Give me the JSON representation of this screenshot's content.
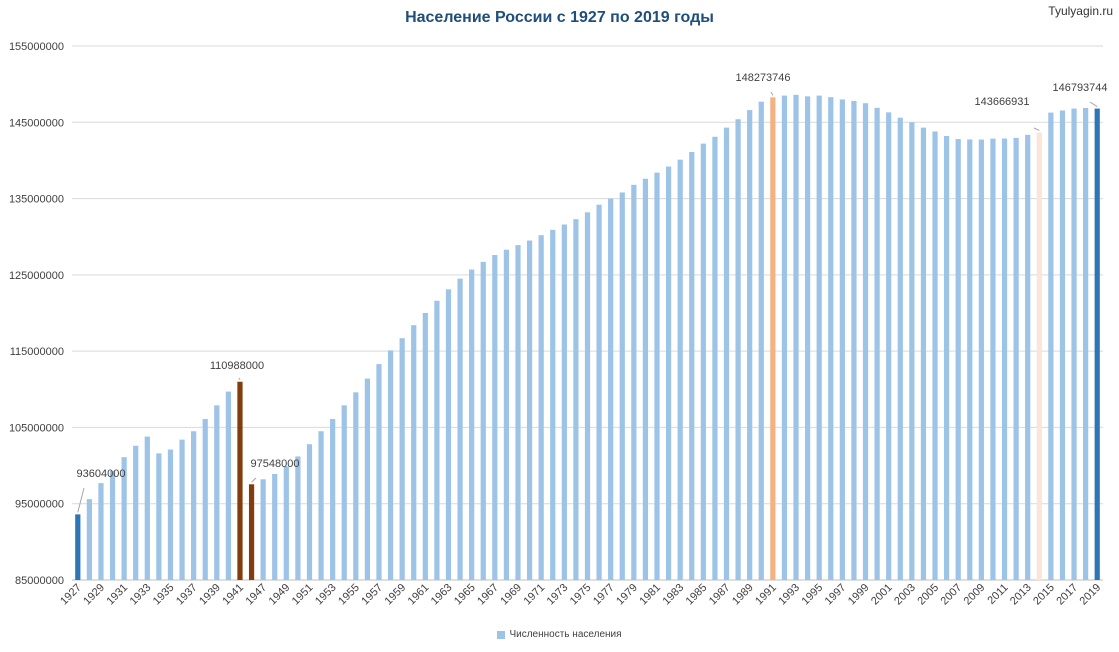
{
  "watermark": "Tyulyagin.ru",
  "chart_data": {
    "type": "bar",
    "title": "Население России с 1927 по 2019 годы",
    "xlabel": "",
    "ylabel": "",
    "ylim": [
      85000000,
      155000000
    ],
    "y_ticks": [
      85000000,
      95000000,
      105000000,
      115000000,
      125000000,
      135000000,
      145000000,
      155000000
    ],
    "grid": true,
    "legend_position": "bottom",
    "colors": {
      "default": "#9dc3e6",
      "endpoint": "#2e75b6",
      "war": "#843c0c",
      "peak": "#f4b183",
      "low2014": "#fbe5d6"
    },
    "series": [
      {
        "name": "Численность населения",
        "points": [
          {
            "year": "1927",
            "value": 93604000,
            "color": "endpoint",
            "label": "93604000"
          },
          {
            "year": "1928",
            "value": 95600000
          },
          {
            "year": "1929",
            "value": 97700000
          },
          {
            "year": "1930",
            "value": 99300000
          },
          {
            "year": "1931",
            "value": 101100000
          },
          {
            "year": "1932",
            "value": 102600000
          },
          {
            "year": "1933",
            "value": 103800000
          },
          {
            "year": "1934",
            "value": 101600000
          },
          {
            "year": "1935",
            "value": 102100000
          },
          {
            "year": "1936",
            "value": 103400000
          },
          {
            "year": "1937",
            "value": 104500000
          },
          {
            "year": "1938",
            "value": 106100000
          },
          {
            "year": "1939",
            "value": 107900000
          },
          {
            "year": "1940",
            "value": 109700000
          },
          {
            "year": "1941",
            "value": 110988000,
            "color": "war",
            "label": "110988000"
          },
          {
            "year": "1946",
            "value": 97548000,
            "color": "war",
            "label": "97548000"
          },
          {
            "year": "1947",
            "value": 98200000
          },
          {
            "year": "1948",
            "value": 98900000
          },
          {
            "year": "1949",
            "value": 99900000
          },
          {
            "year": "1950",
            "value": 101200000
          },
          {
            "year": "1951",
            "value": 102800000
          },
          {
            "year": "1952",
            "value": 104500000
          },
          {
            "year": "1953",
            "value": 106100000
          },
          {
            "year": "1954",
            "value": 107900000
          },
          {
            "year": "1955",
            "value": 109600000
          },
          {
            "year": "1956",
            "value": 111400000
          },
          {
            "year": "1957",
            "value": 113300000
          },
          {
            "year": "1958",
            "value": 115100000
          },
          {
            "year": "1959",
            "value": 116700000
          },
          {
            "year": "1960",
            "value": 118400000
          },
          {
            "year": "1961",
            "value": 120000000
          },
          {
            "year": "1962",
            "value": 121600000
          },
          {
            "year": "1963",
            "value": 123100000
          },
          {
            "year": "1964",
            "value": 124500000
          },
          {
            "year": "1965",
            "value": 125700000
          },
          {
            "year": "1966",
            "value": 126700000
          },
          {
            "year": "1967",
            "value": 127600000
          },
          {
            "year": "1968",
            "value": 128300000
          },
          {
            "year": "1969",
            "value": 128900000
          },
          {
            "year": "1970",
            "value": 129500000
          },
          {
            "year": "1971",
            "value": 130200000
          },
          {
            "year": "1972",
            "value": 130900000
          },
          {
            "year": "1973",
            "value": 131600000
          },
          {
            "year": "1974",
            "value": 132300000
          },
          {
            "year": "1975",
            "value": 133200000
          },
          {
            "year": "1976",
            "value": 134200000
          },
          {
            "year": "1977",
            "value": 135000000
          },
          {
            "year": "1978",
            "value": 135800000
          },
          {
            "year": "1979",
            "value": 136800000
          },
          {
            "year": "1980",
            "value": 137600000
          },
          {
            "year": "1981",
            "value": 138400000
          },
          {
            "year": "1982",
            "value": 139200000
          },
          {
            "year": "1983",
            "value": 140100000
          },
          {
            "year": "1984",
            "value": 141100000
          },
          {
            "year": "1985",
            "value": 142200000
          },
          {
            "year": "1986",
            "value": 143100000
          },
          {
            "year": "1987",
            "value": 144300000
          },
          {
            "year": "1988",
            "value": 145400000
          },
          {
            "year": "1989",
            "value": 146600000
          },
          {
            "year": "1990",
            "value": 147700000
          },
          {
            "year": "1991",
            "value": 148273746,
            "color": "peak",
            "label": "148273746"
          },
          {
            "year": "1992",
            "value": 148500000
          },
          {
            "year": "1993",
            "value": 148600000
          },
          {
            "year": "1994",
            "value": 148400000
          },
          {
            "year": "1995",
            "value": 148500000
          },
          {
            "year": "1996",
            "value": 148300000
          },
          {
            "year": "1997",
            "value": 148000000
          },
          {
            "year": "1998",
            "value": 147800000
          },
          {
            "year": "1999",
            "value": 147500000
          },
          {
            "year": "2000",
            "value": 146900000
          },
          {
            "year": "2001",
            "value": 146300000
          },
          {
            "year": "2002",
            "value": 145600000
          },
          {
            "year": "2003",
            "value": 145000000
          },
          {
            "year": "2004",
            "value": 144300000
          },
          {
            "year": "2005",
            "value": 143800000
          },
          {
            "year": "2006",
            "value": 143200000
          },
          {
            "year": "2007",
            "value": 142800000
          },
          {
            "year": "2008",
            "value": 142750000
          },
          {
            "year": "2009",
            "value": 142740000
          },
          {
            "year": "2010",
            "value": 142860000
          },
          {
            "year": "2011",
            "value": 142870000
          },
          {
            "year": "2012",
            "value": 142960000
          },
          {
            "year": "2013",
            "value": 143350000
          },
          {
            "year": "2014",
            "value": 143666931,
            "color": "low2014",
            "label": "143666931"
          },
          {
            "year": "2015",
            "value": 146270000
          },
          {
            "year": "2016",
            "value": 146540000
          },
          {
            "year": "2017",
            "value": 146800000
          },
          {
            "year": "2018",
            "value": 146880000
          },
          {
            "year": "2019",
            "value": 146793744,
            "color": "endpoint",
            "label": "146793744"
          }
        ]
      }
    ]
  }
}
